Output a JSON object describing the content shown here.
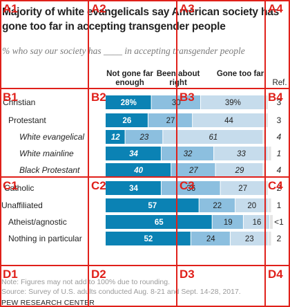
{
  "title": "Majority of white evangelicals say American society has gone too far in accepting transgender people",
  "subtitle": "% who say our society has ____ in accepting transgender people",
  "columns": {
    "not_gone": "Not gone far enough",
    "about_right": "Been about right",
    "too_far": "Gone too far",
    "ref": "Ref."
  },
  "chart_data": {
    "type": "bar",
    "stacked": true,
    "orientation": "horizontal",
    "categories": [
      "Christian",
      "Protestant",
      "White evangelical",
      "White mainline",
      "Black Protestant",
      "Catholic",
      "Unaffiliated",
      "Atheist/agnostic",
      "Nothing in particular"
    ],
    "category_italic": [
      false,
      false,
      true,
      true,
      true,
      false,
      false,
      false,
      false
    ],
    "series": [
      {
        "name": "Not gone far enough",
        "values": [
          28,
          26,
          12,
          34,
          40,
          34,
          57,
          65,
          52
        ],
        "labels": [
          "28%",
          "26",
          "12",
          "34",
          "40",
          "34",
          "57",
          "65",
          "52"
        ]
      },
      {
        "name": "Been about right",
        "values": [
          30,
          27,
          23,
          32,
          27,
          36,
          22,
          19,
          24
        ],
        "labels": [
          "30",
          "27",
          "23",
          "32",
          "27",
          "36",
          "22",
          "19",
          "24"
        ]
      },
      {
        "name": "Gone too far",
        "values": [
          39,
          44,
          61,
          33,
          29,
          27,
          20,
          16,
          23
        ],
        "labels": [
          "39%",
          "44",
          "61",
          "33",
          "29",
          "27",
          "20",
          "16",
          "23"
        ]
      }
    ],
    "ref": [
      "3",
      "3",
      "4",
      "1",
      "4",
      "2",
      "1",
      "<1",
      "2"
    ],
    "colors": {
      "not_gone": "#0b82b4",
      "about_right": "#8cbfdf",
      "too_far": "#c6dcec",
      "ref": "#e4e4e4"
    }
  },
  "notes": {
    "note": "Note: Figures may not add to 100% due to rounding.",
    "source": "Source: Survey of U.S. adults conducted Aug. 8-21 and Sept. 14-28, 2017.",
    "org": "PEW RESEARCH CENTER"
  },
  "grid": {
    "labels": [
      "A1",
      "A2",
      "A3",
      "A4",
      "B1",
      "B2",
      "B3",
      "B4",
      "C1",
      "C2",
      "C3",
      "C4",
      "D1",
      "D2",
      "D3",
      "D4"
    ],
    "color": "#e0201a"
  }
}
